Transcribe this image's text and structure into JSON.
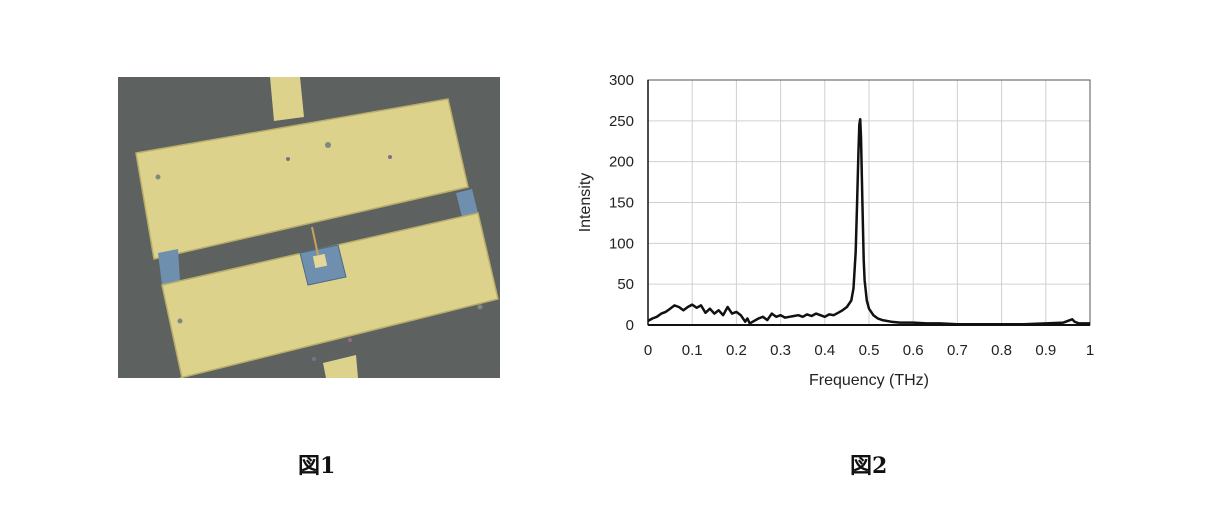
{
  "figures": {
    "fig1_caption": "図1",
    "fig2_caption": "図2"
  },
  "colors": {
    "photo_background": "#5d6160",
    "metal_pad": "#dcd28c",
    "gap_blue": "#6f8fae",
    "curve": "#111111",
    "grid": "#d0d0d0"
  },
  "chart_data": {
    "type": "line",
    "xlabel": "Frequency (THz)",
    "ylabel": "Intensity",
    "xlim": [
      0,
      1
    ],
    "ylim": [
      0,
      300
    ],
    "x_ticks": [
      "0",
      "0.1",
      "0.2",
      "0.3",
      "0.4",
      "0.5",
      "0.6",
      "0.7",
      "0.8",
      "0.9",
      "1"
    ],
    "y_ticks": [
      "0",
      "50",
      "100",
      "150",
      "200",
      "250",
      "300"
    ],
    "grid": true,
    "legend": "none",
    "series": [
      {
        "x": [
          0,
          0.01,
          0.02,
          0.03,
          0.04,
          0.05,
          0.06,
          0.07,
          0.08,
          0.09,
          0.1,
          0.11,
          0.12,
          0.13,
          0.14,
          0.15,
          0.16,
          0.17,
          0.18,
          0.19,
          0.2,
          0.21,
          0.22,
          0.225,
          0.23,
          0.24,
          0.25,
          0.26,
          0.27,
          0.28,
          0.29,
          0.3,
          0.31,
          0.32,
          0.33,
          0.34,
          0.35,
          0.36,
          0.37,
          0.38,
          0.39,
          0.4,
          0.41,
          0.42,
          0.43,
          0.44,
          0.45,
          0.46,
          0.465,
          0.47,
          0.473,
          0.476,
          0.478,
          0.48,
          0.482,
          0.485,
          0.488,
          0.49,
          0.495,
          0.5,
          0.51,
          0.52,
          0.53,
          0.55,
          0.57,
          0.6,
          0.63,
          0.66,
          0.7,
          0.75,
          0.8,
          0.85,
          0.9,
          0.94,
          0.955,
          0.96,
          0.965,
          0.975,
          1.0
        ],
        "y": [
          5,
          8,
          10,
          14,
          16,
          20,
          24,
          22,
          18,
          22,
          25,
          21,
          24,
          15,
          20,
          14,
          18,
          12,
          22,
          14,
          16,
          12,
          4,
          8,
          2,
          5,
          8,
          10,
          6,
          14,
          10,
          12,
          9,
          10,
          11,
          12,
          10,
          13,
          11,
          14,
          12,
          10,
          13,
          12,
          15,
          18,
          22,
          30,
          45,
          90,
          150,
          210,
          245,
          252,
          230,
          150,
          80,
          55,
          30,
          20,
          12,
          8,
          6,
          4,
          3,
          3,
          2,
          2,
          1,
          1,
          1,
          1,
          2,
          3,
          6,
          7,
          4,
          2,
          2
        ]
      }
    ]
  }
}
